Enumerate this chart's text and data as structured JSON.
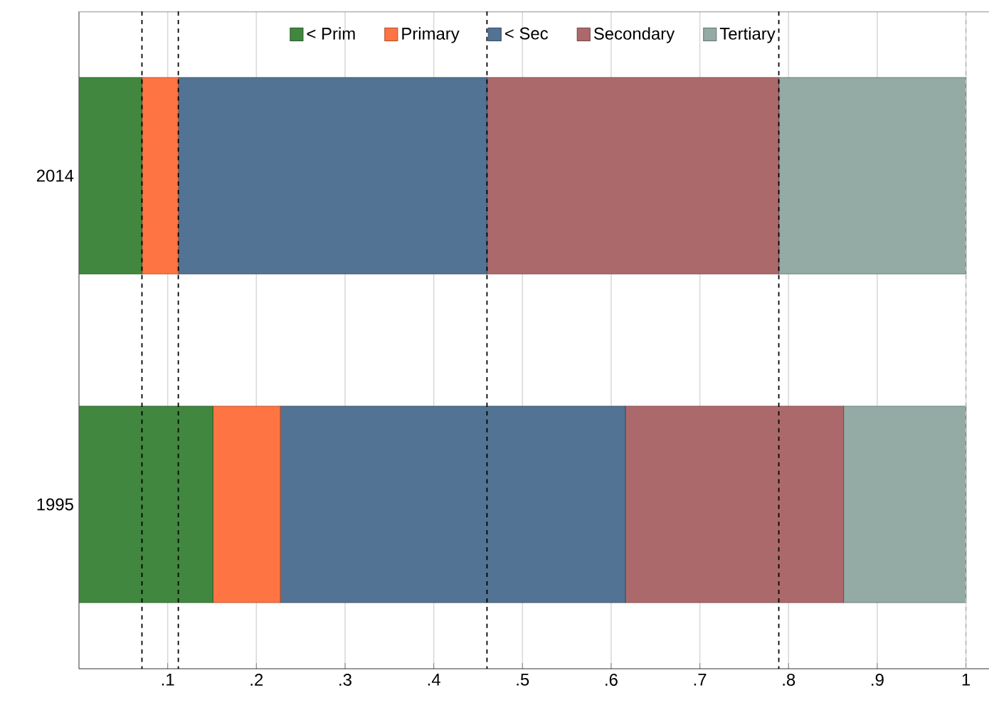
{
  "chart_data": {
    "type": "bar",
    "orientation": "horizontal",
    "stacked": true,
    "categories": [
      "2014",
      "1995"
    ],
    "series": [
      {
        "name": "< Prim",
        "color": "#41873f",
        "values": [
          0.071,
          0.151
        ]
      },
      {
        "name": "Primary",
        "color": "#fe7442",
        "values": [
          0.041,
          0.076
        ]
      },
      {
        "name": "< Sec",
        "color": "#527393",
        "values": [
          0.348,
          0.389
        ]
      },
      {
        "name": "Secondary",
        "color": "#ac696c",
        "values": [
          0.329,
          0.246
        ]
      },
      {
        "name": "Tertiary",
        "color": "#93aba4",
        "values": [
          0.211,
          0.138
        ]
      }
    ],
    "xlim": [
      0,
      1.026
    ],
    "xticks": [
      {
        "value": 0.1,
        "label": ".1"
      },
      {
        "value": 0.2,
        "label": ".2"
      },
      {
        "value": 0.3,
        "label": ".3"
      },
      {
        "value": 0.4,
        "label": ".4"
      },
      {
        "value": 0.5,
        "label": ".5"
      },
      {
        "value": 0.6,
        "label": ".6"
      },
      {
        "value": 0.7,
        "label": ".7"
      },
      {
        "value": 0.8,
        "label": ".8"
      },
      {
        "value": 0.9,
        "label": ".9"
      },
      1
    ],
    "ref_lines": [
      {
        "axis": "x",
        "value": 0.071,
        "line_style": "dashed",
        "color": "#000000"
      },
      {
        "axis": "x",
        "value": 0.112,
        "line_style": "dashed",
        "color": "#000000"
      },
      {
        "axis": "x",
        "value": 0.46,
        "line_style": "dashed",
        "color": "#000000"
      },
      {
        "axis": "x",
        "value": 0.789,
        "line_style": "dashed",
        "color": "#000000"
      },
      {
        "axis": "x",
        "value": 1,
        "line_style": "dashed",
        "color": "#bdbdbd"
      }
    ],
    "grid": "x",
    "legend": "top"
  }
}
